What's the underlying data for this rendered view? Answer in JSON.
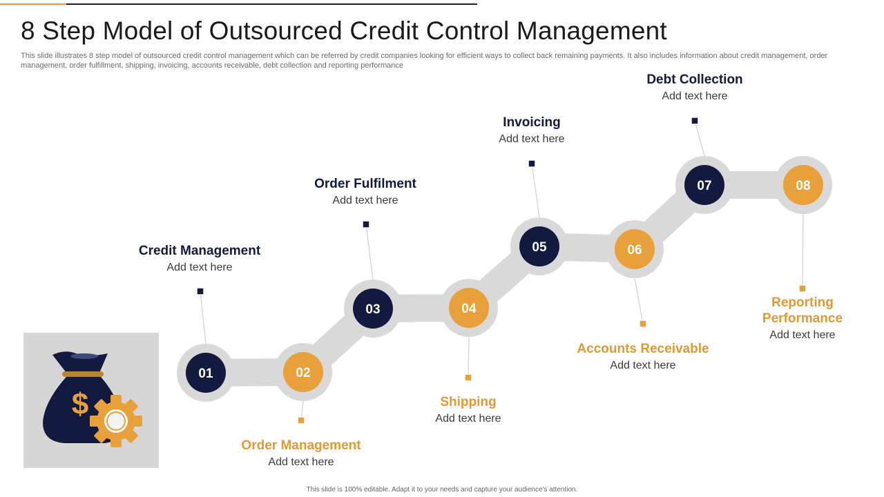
{
  "slide": {
    "title": "8 Step Model of Outsourced Credit Control Management",
    "subtitle": "This slide illustrates 8 step model of outsourced credit control management which can be referred by credit companies looking for efficient ways to collect back remaining payments. It also includes information about credit management, order management, order fulfillment, shipping, invoicing, accounts receivable, debt collection and reporting performance",
    "footer": "This slide is 100% editable. Adapt it to your needs and capture your audience's attention."
  },
  "colors": {
    "navy": "#131A3F",
    "orange": "#E8A13A",
    "track": "#D9D9D9",
    "icon_bg": "#D6D6D6"
  },
  "steps": [
    {
      "num": "01",
      "title": "Credit Management",
      "text": "Add text here",
      "color": "navy"
    },
    {
      "num": "02",
      "title": "Order Management",
      "text": "Add text here",
      "color": "orange"
    },
    {
      "num": "03",
      "title": "Order Fulfilment",
      "text": "Add text here",
      "color": "navy"
    },
    {
      "num": "04",
      "title": "Shipping",
      "text": "Add text here",
      "color": "orange"
    },
    {
      "num": "05",
      "title": "Invoicing",
      "text": "Add text here",
      "color": "navy"
    },
    {
      "num": "06",
      "title": "Accounts Receivable",
      "text": "Add text here",
      "color": "orange"
    },
    {
      "num": "07",
      "title": "Debt Collection",
      "text": "Add text here",
      "color": "navy"
    },
    {
      "num": "08",
      "title": "Reporting Performance",
      "text": "Add text here",
      "color": "orange"
    }
  ],
  "icon": {
    "name": "money-bag-gear-icon",
    "symbol": "$"
  }
}
